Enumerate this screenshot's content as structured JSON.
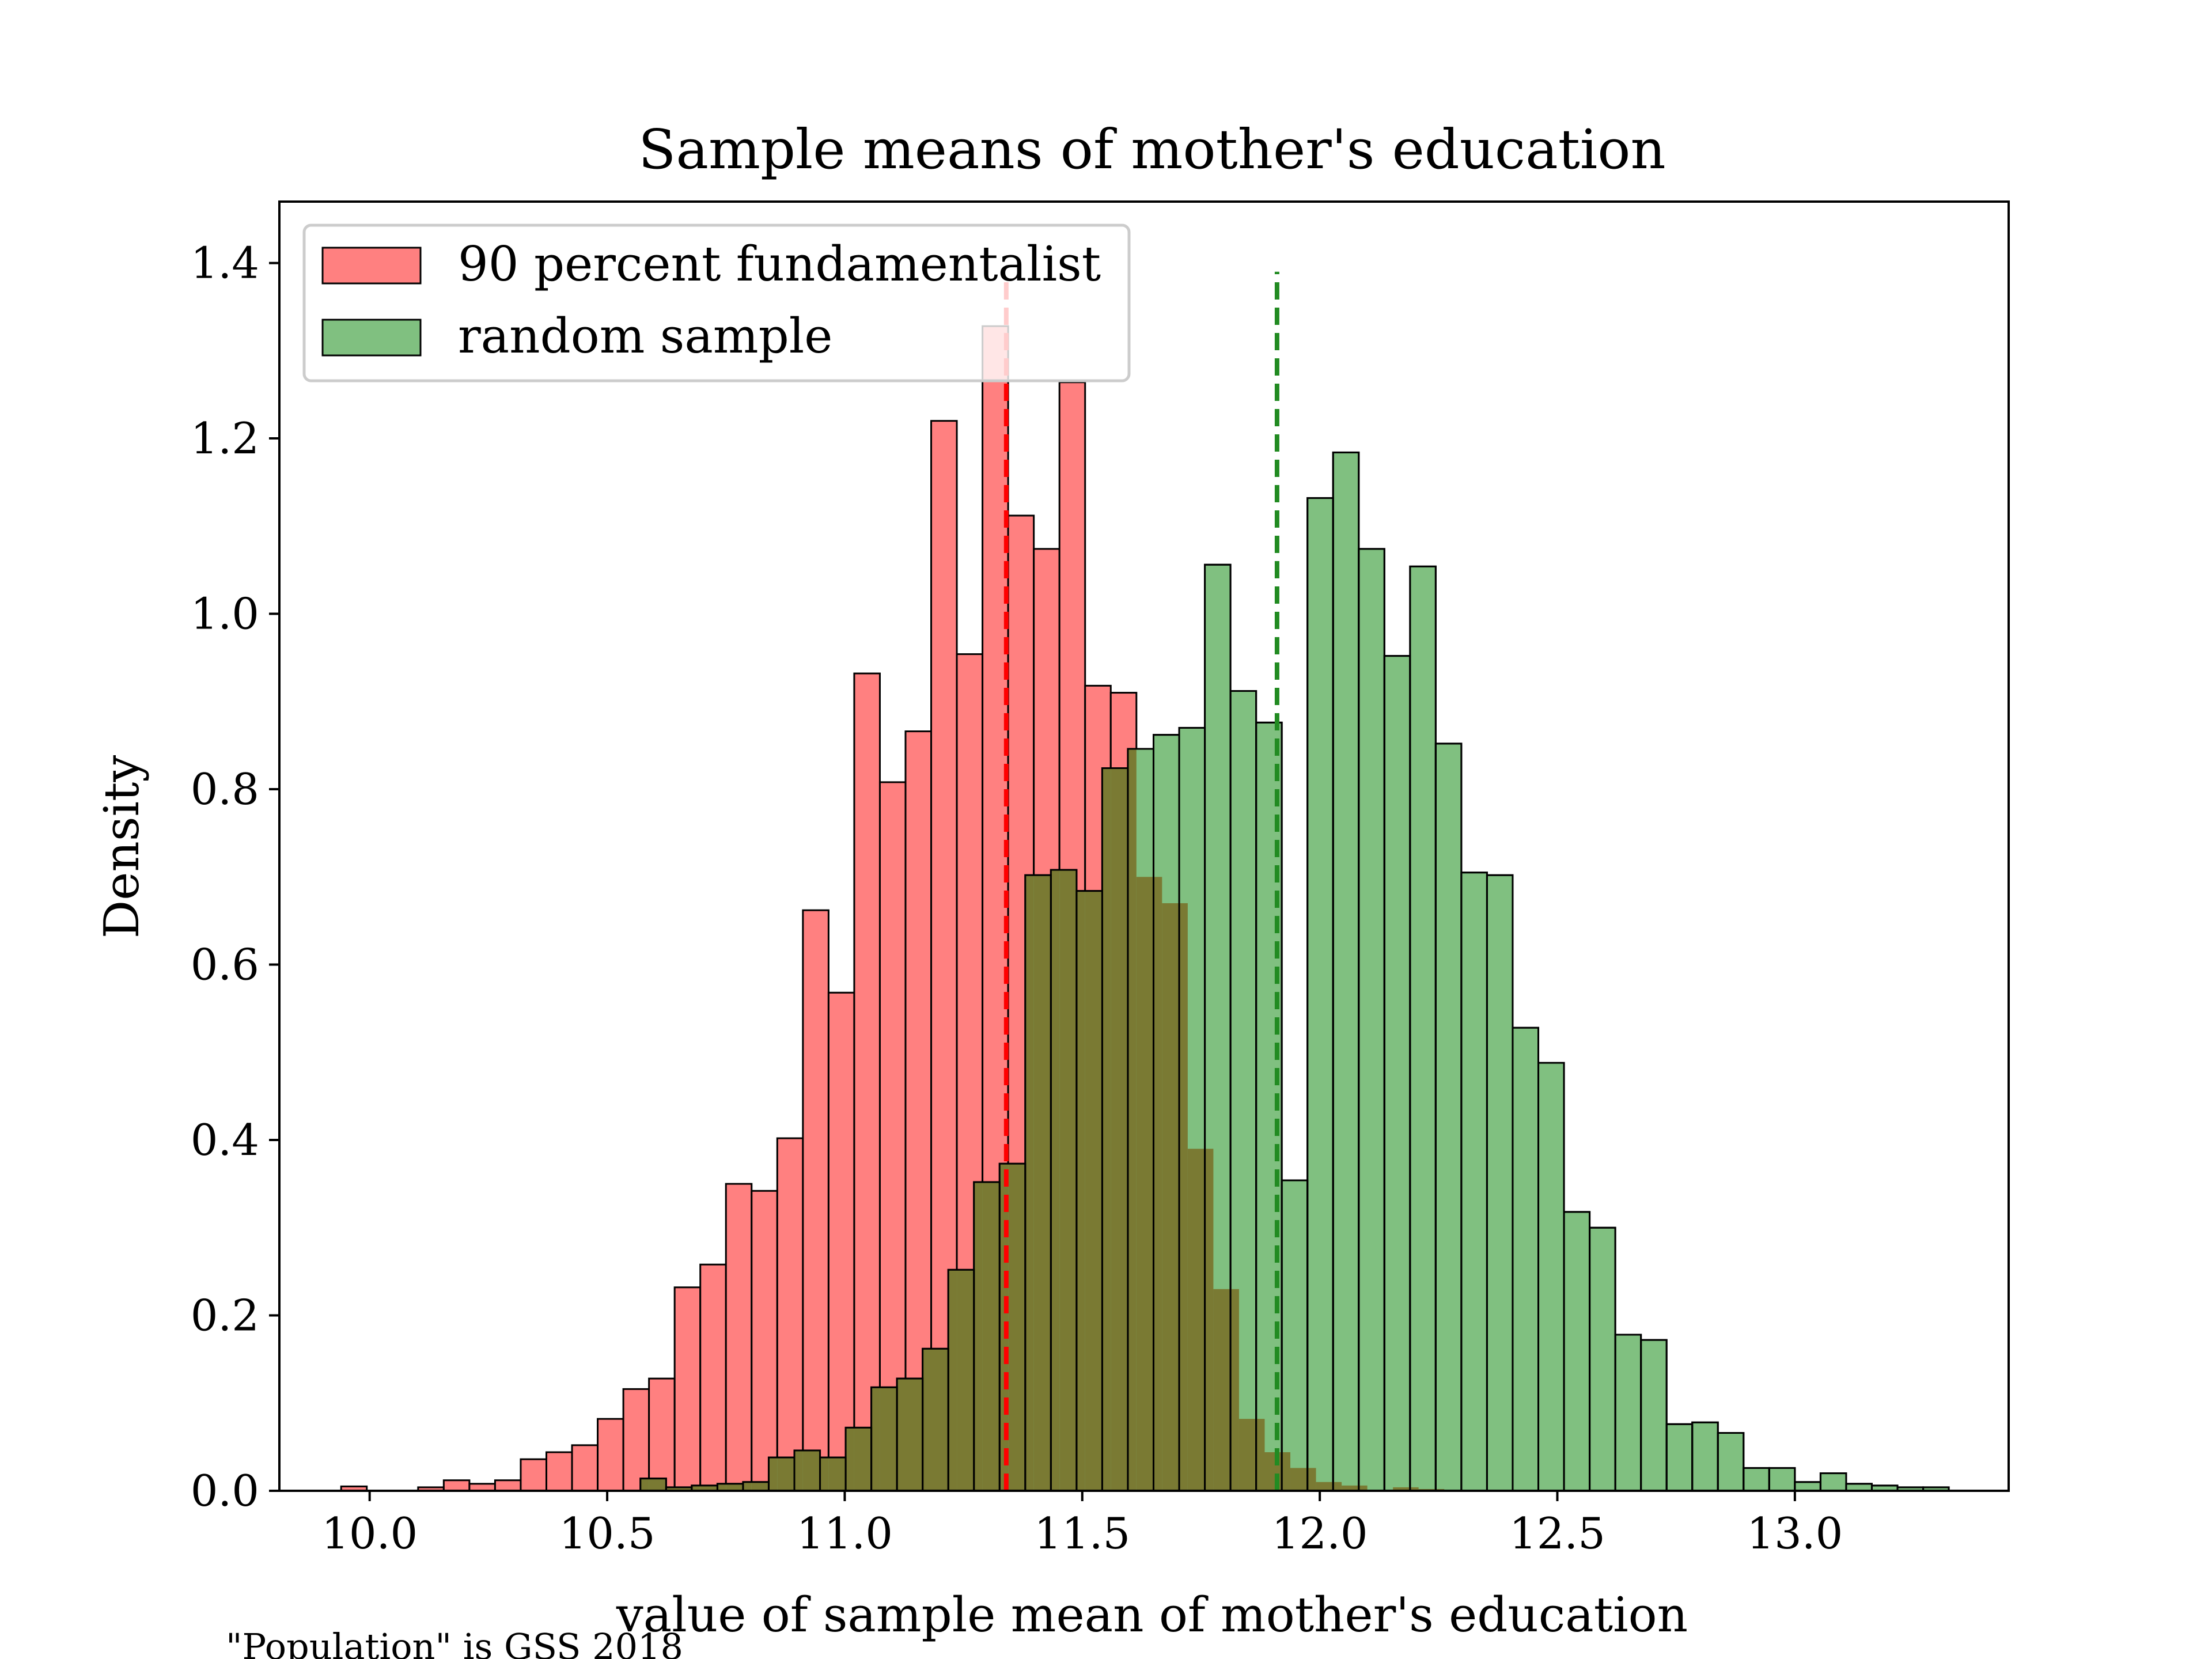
{
  "footnote": "\"Population\" is GSS 2018",
  "colors": {
    "red_fill": "#ff8080",
    "green_fill": "#80c080",
    "overlap_fill": "#7a7a33",
    "red_line": "#ff0000",
    "green_line": "#228b22",
    "edge": "#000000"
  },
  "chart_data": {
    "type": "bar",
    "title": "Sample means of mother's education",
    "xlabel": "value of sample mean of mother's education",
    "ylabel": "Density",
    "xlim": [
      9.81,
      13.45
    ],
    "ylim": [
      0,
      1.47
    ],
    "xticks": [
      "10.0",
      "10.5",
      "11.0",
      "11.5",
      "12.0",
      "12.5",
      "13.0"
    ],
    "yticks": [
      "0.0",
      "0.2",
      "0.4",
      "0.6",
      "0.8",
      "1.0",
      "1.2",
      "1.4"
    ],
    "grid": false,
    "legend_position": "top-left",
    "series": [
      {
        "name": "90 percent fundamentalist",
        "color": "#ff8080",
        "bin_start": 9.94,
        "bin_width": 0.054,
        "values": [
          0.005,
          0,
          0,
          0.004,
          0.012,
          0.008,
          0.012,
          0.036,
          0.044,
          0.052,
          0.082,
          0.116,
          0.128,
          0.232,
          0.258,
          0.35,
          0.342,
          0.402,
          0.662,
          0.568,
          0.932,
          0.808,
          0.866,
          1.22,
          0.954,
          1.328,
          1.112,
          1.074,
          1.264,
          0.918,
          0.91,
          0.7,
          0.67,
          0.39,
          0.23,
          0.082,
          0.044,
          0.026,
          0.01,
          0.006,
          0,
          0.004,
          0.002
        ],
        "mean": 11.34
      },
      {
        "name": "random sample",
        "color": "#80c080",
        "bin_start": 10.57,
        "bin_width": 0.054,
        "values": [
          0.014,
          0.004,
          0.006,
          0.008,
          0.01,
          0.038,
          0.046,
          0.038,
          0.072,
          0.118,
          0.128,
          0.162,
          0.252,
          0.352,
          0.373,
          0.402,
          0.546,
          0.684,
          0.712,
          0.738,
          0.66,
          0.568,
          0.432,
          0.402,
          0.4,
          0.354,
          1.132,
          1.184,
          1.074,
          0.952,
          1.054,
          0.852,
          0.705,
          0.702,
          0.528,
          0.488,
          0.318,
          0.3,
          0.178,
          0.172,
          0.076,
          0.078,
          0.066,
          0.026,
          0.026,
          0.01,
          0.02,
          0.008,
          0.006,
          0.004,
          0.004
        ],
        "override_values": {
          "15": 0.702,
          "16": 0.708,
          "18": 0.824,
          "19": 0.846,
          "20": 0.862,
          "21": 0.87,
          "22": 1.056,
          "23": 0.912,
          "24": 0.876
        },
        "mean": 11.91
      }
    ]
  }
}
